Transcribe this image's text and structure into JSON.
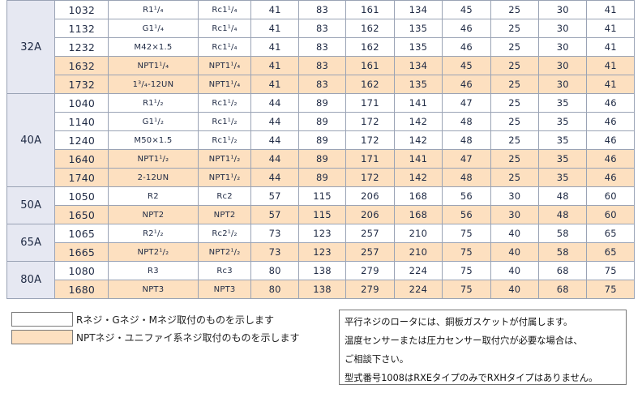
{
  "table": {
    "groups": [
      {
        "size": "32A",
        "rows": [
          {
            "model": "1032",
            "thread": "R1¹/₄",
            "port": "Rc1¹/₄",
            "v": [
              "41",
              "83",
              "161",
              "134",
              "45",
              "25",
              "30",
              "41"
            ],
            "npt": false
          },
          {
            "model": "1132",
            "thread": "G1¹/₄",
            "port": "Rc1¹/₄",
            "v": [
              "41",
              "83",
              "162",
              "135",
              "46",
              "25",
              "30",
              "41"
            ],
            "npt": false
          },
          {
            "model": "1232",
            "thread": "M42×1.5",
            "port": "Rc1¹/₄",
            "v": [
              "41",
              "83",
              "162",
              "135",
              "46",
              "25",
              "30",
              "41"
            ],
            "npt": false
          },
          {
            "model": "1632",
            "thread": "NPT1¹/₄",
            "port": "NPT1¹/₄",
            "v": [
              "41",
              "83",
              "161",
              "134",
              "45",
              "25",
              "30",
              "41"
            ],
            "npt": true
          },
          {
            "model": "1732",
            "thread": "1³/₄-12UN",
            "port": "NPT1¹/₄",
            "v": [
              "41",
              "83",
              "162",
              "135",
              "46",
              "25",
              "30",
              "41"
            ],
            "npt": true
          }
        ]
      },
      {
        "size": "40A",
        "rows": [
          {
            "model": "1040",
            "thread": "R1¹/₂",
            "port": "Rc1¹/₂",
            "v": [
              "44",
              "89",
              "171",
              "141",
              "47",
              "25",
              "35",
              "46"
            ],
            "npt": false
          },
          {
            "model": "1140",
            "thread": "G1¹/₂",
            "port": "Rc1¹/₂",
            "v": [
              "44",
              "89",
              "172",
              "142",
              "48",
              "25",
              "35",
              "46"
            ],
            "npt": false
          },
          {
            "model": "1240",
            "thread": "M50×1.5",
            "port": "Rc1¹/₂",
            "v": [
              "44",
              "89",
              "172",
              "142",
              "48",
              "25",
              "35",
              "46"
            ],
            "npt": false
          },
          {
            "model": "1640",
            "thread": "NPT1¹/₂",
            "port": "NPT1¹/₂",
            "v": [
              "44",
              "89",
              "171",
              "141",
              "47",
              "25",
              "35",
              "46"
            ],
            "npt": true
          },
          {
            "model": "1740",
            "thread": "2-12UN",
            "port": "NPT1¹/₂",
            "v": [
              "44",
              "89",
              "172",
              "142",
              "48",
              "25",
              "35",
              "46"
            ],
            "npt": true
          }
        ]
      },
      {
        "size": "50A",
        "rows": [
          {
            "model": "1050",
            "thread": "R2",
            "port": "Rc2",
            "v": [
              "57",
              "115",
              "206",
              "168",
              "56",
              "30",
              "48",
              "60"
            ],
            "npt": false
          },
          {
            "model": "1650",
            "thread": "NPT2",
            "port": "NPT2",
            "v": [
              "57",
              "115",
              "206",
              "168",
              "56",
              "30",
              "48",
              "60"
            ],
            "npt": true
          }
        ]
      },
      {
        "size": "65A",
        "rows": [
          {
            "model": "1065",
            "thread": "R2¹/₂",
            "port": "Rc2¹/₂",
            "v": [
              "73",
              "123",
              "257",
              "210",
              "75",
              "40",
              "58",
              "65"
            ],
            "npt": false
          },
          {
            "model": "1665",
            "thread": "NPT2¹/₂",
            "port": "NPT2¹/₂",
            "v": [
              "73",
              "123",
              "257",
              "210",
              "75",
              "40",
              "58",
              "65"
            ],
            "npt": true
          }
        ]
      },
      {
        "size": "80A",
        "rows": [
          {
            "model": "1080",
            "thread": "R3",
            "port": "Rc3",
            "v": [
              "80",
              "138",
              "279",
              "224",
              "75",
              "40",
              "68",
              "75"
            ],
            "npt": false
          },
          {
            "model": "1680",
            "thread": "NPT3",
            "port": "NPT3",
            "v": [
              "80",
              "138",
              "279",
              "224",
              "75",
              "40",
              "68",
              "75"
            ],
            "npt": true
          }
        ]
      }
    ]
  },
  "legend": {
    "white_label": "Rネジ・Gネジ・Mネジ取付のものを示します",
    "orange_label": "NPTネジ・ユニファイ系ネジ取付のものを示します"
  },
  "notes": [
    "平行ネジのロータには、銅板ガスケットが付属します。",
    "温度センサーまたは圧力センサー取付穴が必要な場合は、",
    "ご相談下さい。",
    "型式番号1008はRXEタイプのみでRXHタイプはありません。"
  ],
  "colors": {
    "npt_row": "#fde0c0",
    "size_cell": "#e6e8f2",
    "border": "#9aa3b5"
  }
}
